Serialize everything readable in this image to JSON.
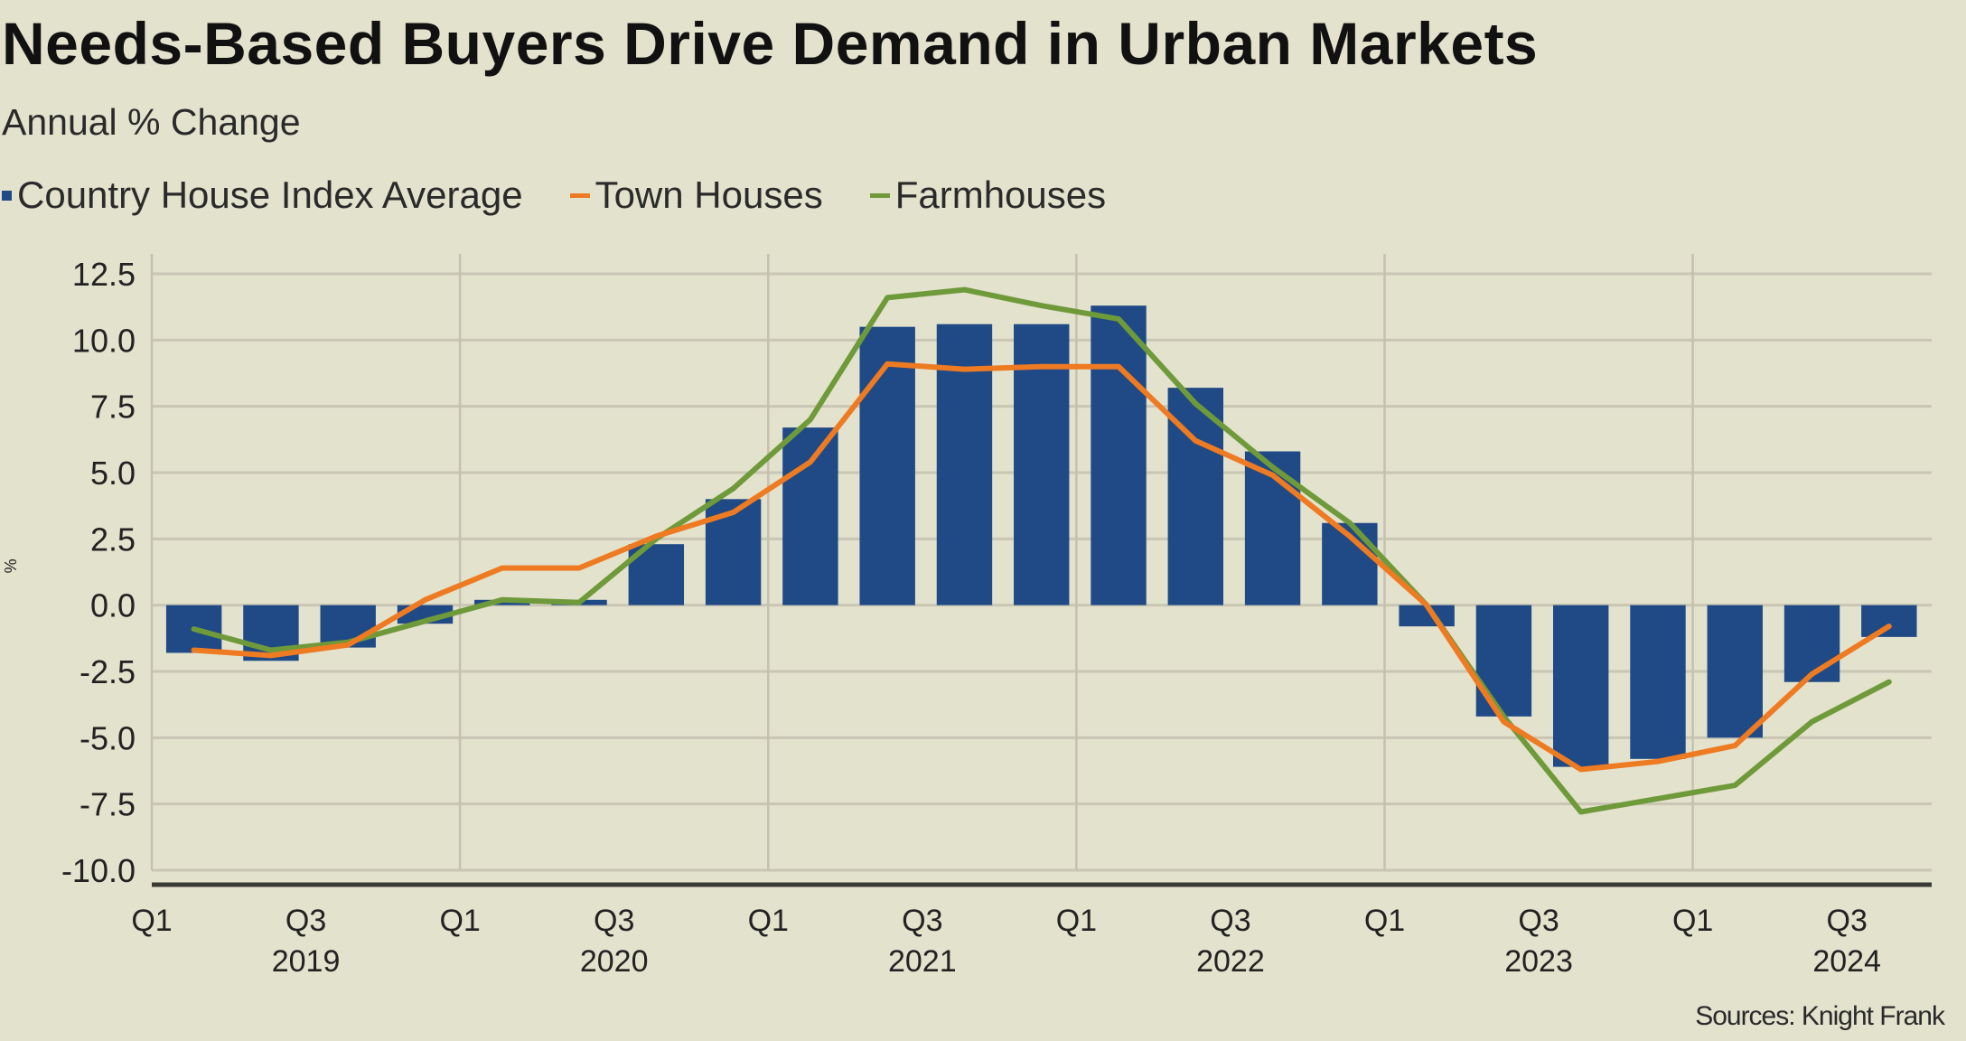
{
  "header": {
    "title": "Needs-Based Buyers Drive Demand in Urban Markets",
    "subtitle": "Annual % Change"
  },
  "legend": [
    {
      "label": "Country House Index Average",
      "marker": "square",
      "color": "#1f4a86"
    },
    {
      "label": "Town Houses",
      "marker": "line",
      "color": "#ee7a22"
    },
    {
      "label": "Farmhouses",
      "marker": "line",
      "color": "#6f9a3a"
    }
  ],
  "footer": {
    "source": "Sources: Knight Frank"
  },
  "chart_data": {
    "type": "bar",
    "title": "Needs-Based Buyers Drive Demand in Urban Markets",
    "subtitle": "Annual % Change",
    "xlabel": "",
    "ylabel": "%",
    "ylim": [
      -10.0,
      12.5
    ],
    "yticks": [
      12.5,
      10.0,
      7.5,
      5.0,
      2.5,
      0.0,
      -2.5,
      -5.0,
      -7.5,
      -10.0
    ],
    "ytick_labels": [
      "12.5",
      "10.0",
      "7.5",
      "5.0",
      "2.5",
      "0.0",
      "-2.5",
      "-5.0",
      "-7.5",
      "-10.0"
    ],
    "grid": true,
    "legend_position": "top-left",
    "categories": [
      "2019 Q1",
      "2019 Q2",
      "2019 Q3",
      "2019 Q4",
      "2020 Q1",
      "2020 Q2",
      "2020 Q3",
      "2020 Q4",
      "2021 Q1",
      "2021 Q2",
      "2021 Q3",
      "2021 Q4",
      "2022 Q1",
      "2022 Q2",
      "2022 Q3",
      "2022 Q4",
      "2023 Q1",
      "2023 Q2",
      "2023 Q3",
      "2023 Q4",
      "2024 Q1",
      "2024 Q2",
      "2024 Q3"
    ],
    "x_tick_labels": [
      {
        "index": 0,
        "quarter": "Q1",
        "year": ""
      },
      {
        "index": 2,
        "quarter": "Q3",
        "year": "2019"
      },
      {
        "index": 4,
        "quarter": "Q1",
        "year": ""
      },
      {
        "index": 6,
        "quarter": "Q3",
        "year": "2020"
      },
      {
        "index": 8,
        "quarter": "Q1",
        "year": ""
      },
      {
        "index": 10,
        "quarter": "Q3",
        "year": "2021"
      },
      {
        "index": 12,
        "quarter": "Q1",
        "year": ""
      },
      {
        "index": 14,
        "quarter": "Q3",
        "year": "2022"
      },
      {
        "index": 16,
        "quarter": "Q1",
        "year": ""
      },
      {
        "index": 18,
        "quarter": "Q3",
        "year": "2023"
      },
      {
        "index": 20,
        "quarter": "Q1",
        "year": ""
      },
      {
        "index": 22,
        "quarter": "Q3",
        "year": "2024"
      }
    ],
    "series": [
      {
        "name": "Country House Index Average",
        "type": "bar",
        "color": "#1f4a86",
        "values": [
          -1.8,
          -2.1,
          -1.6,
          -0.7,
          0.2,
          0.2,
          2.3,
          4.0,
          6.7,
          10.5,
          10.6,
          10.6,
          11.3,
          8.2,
          5.8,
          3.1,
          -0.8,
          -4.2,
          -6.1,
          -5.8,
          -5.0,
          -2.9,
          -1.2
        ]
      },
      {
        "name": "Town Houses",
        "type": "line",
        "color": "#ee7a22",
        "values": [
          -1.7,
          -1.9,
          -1.5,
          0.2,
          1.4,
          1.4,
          2.6,
          3.5,
          5.4,
          9.1,
          8.9,
          9.0,
          9.0,
          6.2,
          4.9,
          2.6,
          0.0,
          -4.4,
          -6.2,
          -5.9,
          -5.3,
          -2.6,
          -0.8
        ]
      },
      {
        "name": "Farmhouses",
        "type": "line",
        "color": "#6f9a3a",
        "values": [
          -0.9,
          -1.7,
          -1.4,
          -0.6,
          0.2,
          0.1,
          2.5,
          4.4,
          7.0,
          11.6,
          11.9,
          11.3,
          10.8,
          7.6,
          5.2,
          3.1,
          0.0,
          -4.2,
          -7.8,
          -7.3,
          -6.8,
          -4.4,
          -2.9
        ]
      }
    ]
  }
}
